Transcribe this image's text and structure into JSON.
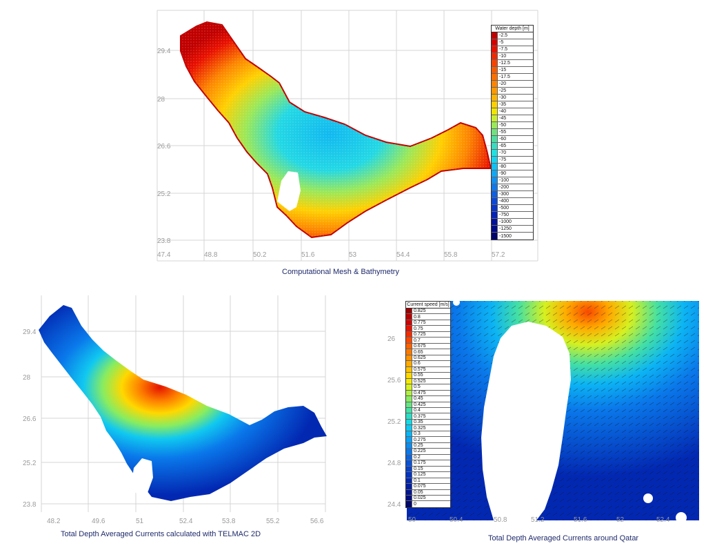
{
  "bathymetry": {
    "caption": "Computational Mesh & Bathymetry",
    "legend_title": "Water depth [m]",
    "legend": [
      {
        "label": "-2.5",
        "color": "#c00000"
      },
      {
        "label": "-5",
        "color": "#d60000"
      },
      {
        "label": "-7.5",
        "color": "#e81000"
      },
      {
        "label": "-10",
        "color": "#f02800"
      },
      {
        "label": "-12.5",
        "color": "#f54400"
      },
      {
        "label": "-15",
        "color": "#f85c00"
      },
      {
        "label": "-17.5",
        "color": "#fb7000"
      },
      {
        "label": "-20",
        "color": "#fd8400"
      },
      {
        "label": "-25",
        "color": "#fe9a00"
      },
      {
        "label": "-30",
        "color": "#ffb400"
      },
      {
        "label": "-35",
        "color": "#ffd000"
      },
      {
        "label": "-40",
        "color": "#f0e600"
      },
      {
        "label": "-45",
        "color": "#c8ee30"
      },
      {
        "label": "-50",
        "color": "#9be858"
      },
      {
        "label": "-55",
        "color": "#70e080"
      },
      {
        "label": "-60",
        "color": "#50dca0"
      },
      {
        "label": "-65",
        "color": "#38dcc0"
      },
      {
        "label": "-70",
        "color": "#22e0e0"
      },
      {
        "label": "-75",
        "color": "#14d4f0"
      },
      {
        "label": "-80",
        "color": "#10c0f4"
      },
      {
        "label": "-90",
        "color": "#10a8f4"
      },
      {
        "label": "-100",
        "color": "#1090f0"
      },
      {
        "label": "-200",
        "color": "#1078ea"
      },
      {
        "label": "-300",
        "color": "#1060e0"
      },
      {
        "label": "-400",
        "color": "#0c48d6"
      },
      {
        "label": "-500",
        "color": "#0834c8"
      },
      {
        "label": "-750",
        "color": "#0422b4"
      },
      {
        "label": "-1000",
        "color": "#02129c"
      },
      {
        "label": "-1250",
        "color": "#000a84"
      },
      {
        "label": "-1500",
        "color": "#00046c"
      }
    ],
    "x_ticks": [
      "47.4",
      "48.8",
      "50.2",
      "51.6",
      "53",
      "54.4",
      "55.8",
      "57.2"
    ],
    "y_ticks": [
      "29.4",
      "28",
      "26.6",
      "25.2",
      "23.8"
    ]
  },
  "currents": {
    "caption": "Total Depth Averaged Currents calculated with TELMAC 2D",
    "x_ticks": [
      "48.2",
      "49.6",
      "51",
      "52.4",
      "53.8",
      "55.2",
      "56.6"
    ],
    "y_ticks": [
      "29.4",
      "28",
      "26.6",
      "25.2",
      "23.8"
    ]
  },
  "qatar": {
    "caption": "Total Depth Averaged Currents around Qatar",
    "legend_title": "Current speed [m/s]",
    "legend": [
      {
        "label": "0.825",
        "color": "#9c0000"
      },
      {
        "label": "0.8",
        "color": "#b80000"
      },
      {
        "label": "0.775",
        "color": "#d00000"
      },
      {
        "label": "0.75",
        "color": "#e41400"
      },
      {
        "label": "0.725",
        "color": "#f22c00"
      },
      {
        "label": "0.7",
        "color": "#f84800"
      },
      {
        "label": "0.675",
        "color": "#fb6200"
      },
      {
        "label": "0.65",
        "color": "#fd7a00"
      },
      {
        "label": "0.625",
        "color": "#fe9200"
      },
      {
        "label": "0.6",
        "color": "#ffaa00"
      },
      {
        "label": "0.575",
        "color": "#ffc200"
      },
      {
        "label": "0.55",
        "color": "#ffd800"
      },
      {
        "label": "0.525",
        "color": "#f4ea00"
      },
      {
        "label": "0.5",
        "color": "#d6f020"
      },
      {
        "label": "0.475",
        "color": "#b0f040"
      },
      {
        "label": "0.45",
        "color": "#88ec60"
      },
      {
        "label": "0.425",
        "color": "#64e680"
      },
      {
        "label": "0.4",
        "color": "#44e0a4"
      },
      {
        "label": "0.375",
        "color": "#2cdcc4"
      },
      {
        "label": "0.35",
        "color": "#1ad8e0"
      },
      {
        "label": "0.325",
        "color": "#10c8f0"
      },
      {
        "label": "0.3",
        "color": "#0cb4f4"
      },
      {
        "label": "0.275",
        "color": "#0aa0f4"
      },
      {
        "label": "0.25",
        "color": "#0a8cf0"
      },
      {
        "label": "0.225",
        "color": "#0a78ea"
      },
      {
        "label": "0.2",
        "color": "#0a64e2"
      },
      {
        "label": "0.175",
        "color": "#0852d8"
      },
      {
        "label": "0.15",
        "color": "#0642cc"
      },
      {
        "label": "0.125",
        "color": "#0434c0"
      },
      {
        "label": "0.1",
        "color": "#0228b2"
      },
      {
        "label": "0.075",
        "color": "#021ea2"
      },
      {
        "label": "0.05",
        "color": "#011690"
      },
      {
        "label": "0.025",
        "color": "#000e7e"
      },
      {
        "label": "0",
        "color": "#00086a"
      }
    ],
    "x_ticks": [
      "50",
      "50.4",
      "50.8",
      "51.2",
      "51.6",
      "52",
      "52.4"
    ],
    "y_ticks": [
      "26",
      "25.6",
      "25.2",
      "24.8",
      "24.4"
    ]
  }
}
